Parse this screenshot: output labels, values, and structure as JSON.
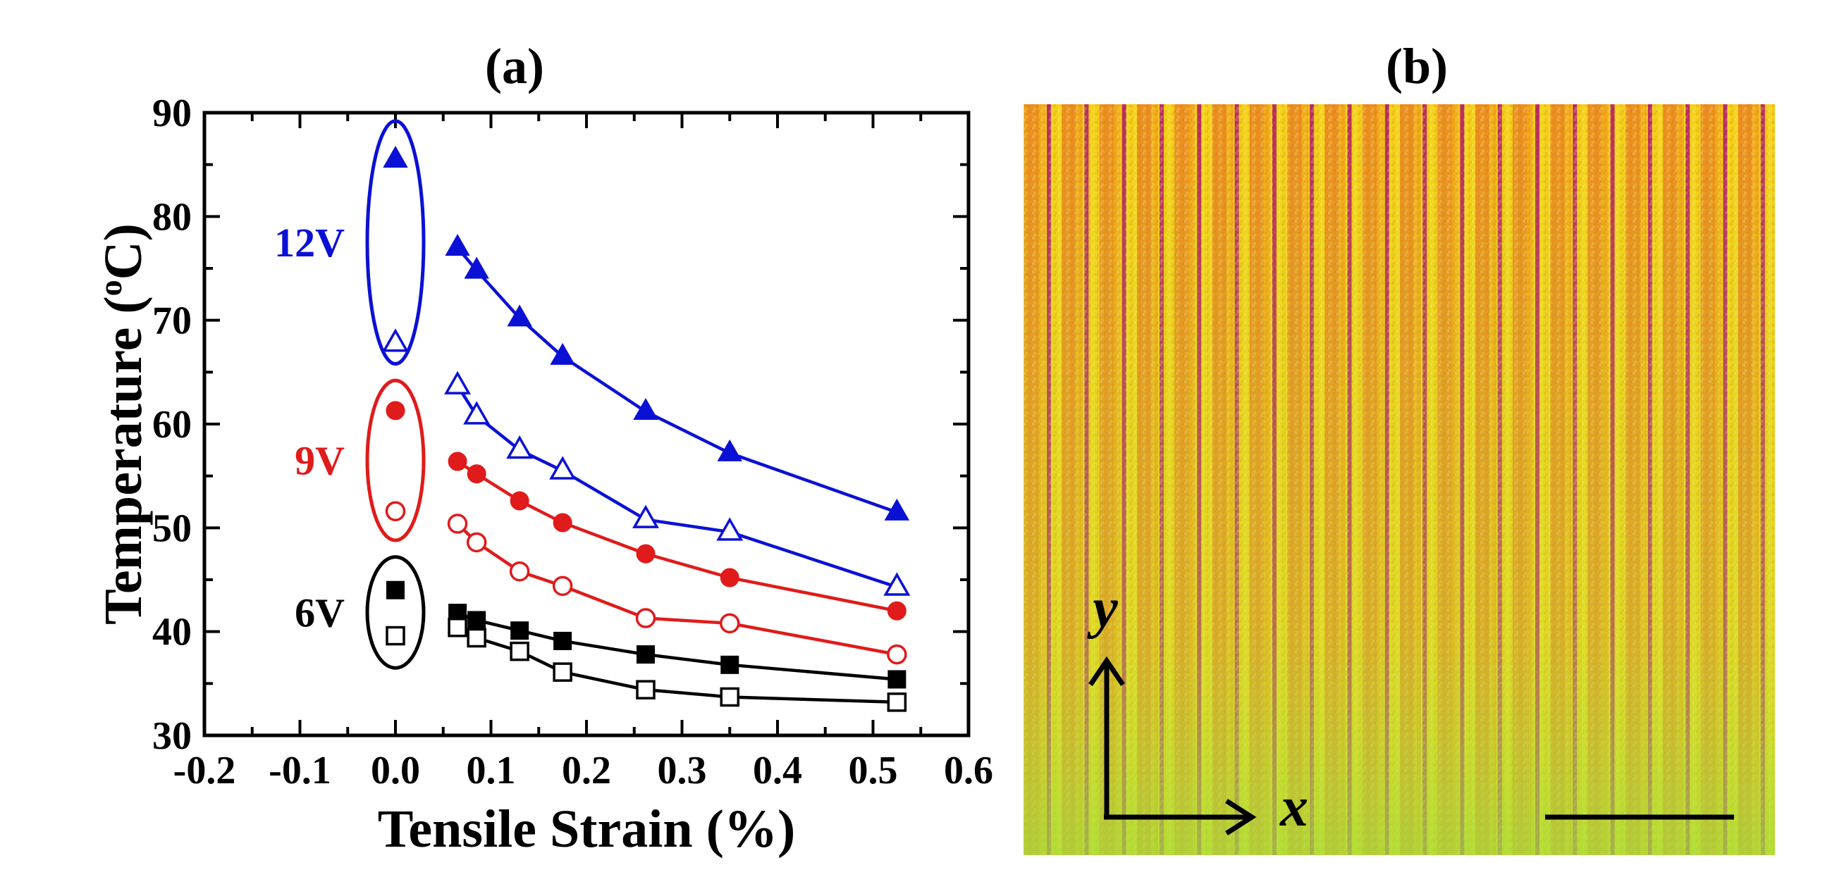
{
  "panels": {
    "a_label": "(a)",
    "b_label": "(b)"
  },
  "chart_data": {
    "type": "scatter",
    "title": "(a)",
    "xlabel": "Tensile Strain (%)",
    "ylabel_main": "Temperature (",
    "ylabel_sup": "o",
    "ylabel_end": "C)",
    "xlim": [
      -0.2,
      0.6
    ],
    "ylim": [
      30,
      90
    ],
    "xticks": [
      "-0.2",
      "-0.1",
      "0.0",
      "0.1",
      "0.2",
      "0.3",
      "0.4",
      "0.5",
      "0.6"
    ],
    "yticks": [
      "30",
      "40",
      "50",
      "60",
      "70",
      "80",
      "90"
    ],
    "series": [
      {
        "name": "12V filled",
        "group": "12V",
        "color": "#0b11d4",
        "marker": "triangle",
        "filled": true,
        "unstrained": 85.5,
        "x": [
          0.065,
          0.085,
          0.13,
          0.175,
          0.262,
          0.35,
          0.525
        ],
        "y": [
          77.0,
          74.8,
          70.2,
          66.5,
          61.2,
          57.2,
          51.5
        ]
      },
      {
        "name": "12V open",
        "group": "12V",
        "color": "#0b11d4",
        "marker": "triangle",
        "filled": false,
        "unstrained": 67.8,
        "x": [
          0.065,
          0.085,
          0.13,
          0.175,
          0.262,
          0.35,
          0.525
        ],
        "y": [
          63.7,
          60.8,
          57.5,
          55.5,
          50.8,
          49.6,
          44.3
        ]
      },
      {
        "name": "9V filled",
        "group": "9V",
        "color": "#e01b1b",
        "marker": "circle",
        "filled": true,
        "unstrained": 61.3,
        "x": [
          0.065,
          0.085,
          0.13,
          0.175,
          0.262,
          0.35,
          0.525
        ],
        "y": [
          56.4,
          55.2,
          52.6,
          50.5,
          47.5,
          45.2,
          42.0
        ]
      },
      {
        "name": "9V open",
        "group": "9V",
        "color": "#e01b1b",
        "marker": "circle",
        "filled": false,
        "unstrained": 51.6,
        "x": [
          0.065,
          0.085,
          0.13,
          0.175,
          0.262,
          0.35,
          0.525
        ],
        "y": [
          50.4,
          48.6,
          45.8,
          44.4,
          41.3,
          40.8,
          37.8
        ]
      },
      {
        "name": "6V filled",
        "group": "6V",
        "color": "#000000",
        "marker": "square",
        "filled": true,
        "unstrained": 44.0,
        "x": [
          0.065,
          0.085,
          0.13,
          0.175,
          0.262,
          0.35,
          0.525
        ],
        "y": [
          41.8,
          41.1,
          40.1,
          39.1,
          37.8,
          36.8,
          35.4
        ]
      },
      {
        "name": "6V open",
        "group": "6V",
        "color": "#000000",
        "marker": "square",
        "filled": false,
        "unstrained": 39.6,
        "x": [
          0.065,
          0.085,
          0.13,
          0.175,
          0.262,
          0.35,
          0.525
        ],
        "y": [
          40.4,
          39.4,
          38.1,
          36.1,
          34.4,
          33.7,
          33.2
        ]
      }
    ],
    "groups": [
      {
        "label": "12V",
        "color": "#0b11d4",
        "ymin": 65.8,
        "ymax": 89.2
      },
      {
        "label": "9V",
        "color": "#e01b1b",
        "ymin": 48.8,
        "ymax": 64.2
      },
      {
        "label": "6V",
        "color": "#000000",
        "ymin": 36.5,
        "ymax": 47.2
      }
    ]
  },
  "image_panel": {
    "description_colors": {
      "base": "#f4d21a",
      "stripe": "#e25a22",
      "line": "#b0196a",
      "bottom": "#a8e23a"
    },
    "stripe_count": 20,
    "x_axis_label": "x",
    "y_axis_label": "y"
  }
}
